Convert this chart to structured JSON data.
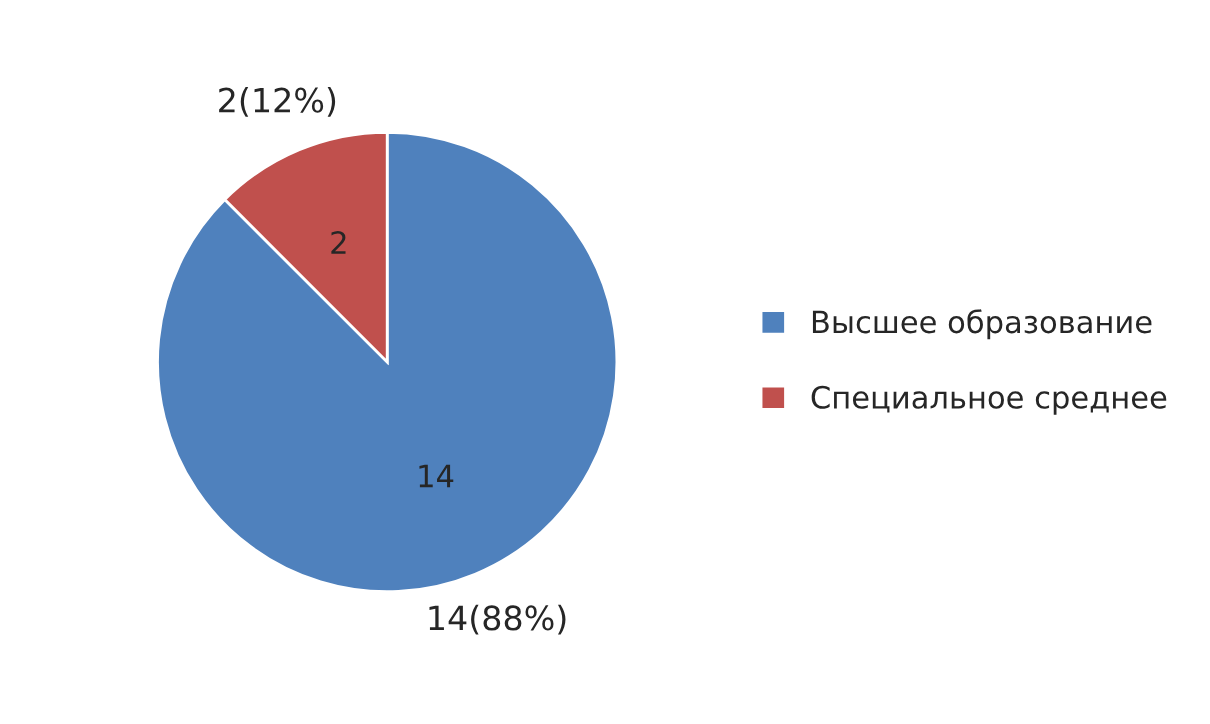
{
  "chart_data": {
    "type": "pie",
    "categories": [
      "Высшее образование",
      "Специальное среднее"
    ],
    "values": [
      14,
      2
    ],
    "colors": [
      "#4f81bd",
      "#c0504d"
    ],
    "annotations": [
      {
        "text": "14",
        "x": "Высшее образование"
      },
      {
        "text": "2",
        "x": "Специальное среднее"
      }
    ],
    "value_labels": [
      "14(88%)",
      "2(12%)"
    ],
    "legend": "right"
  }
}
